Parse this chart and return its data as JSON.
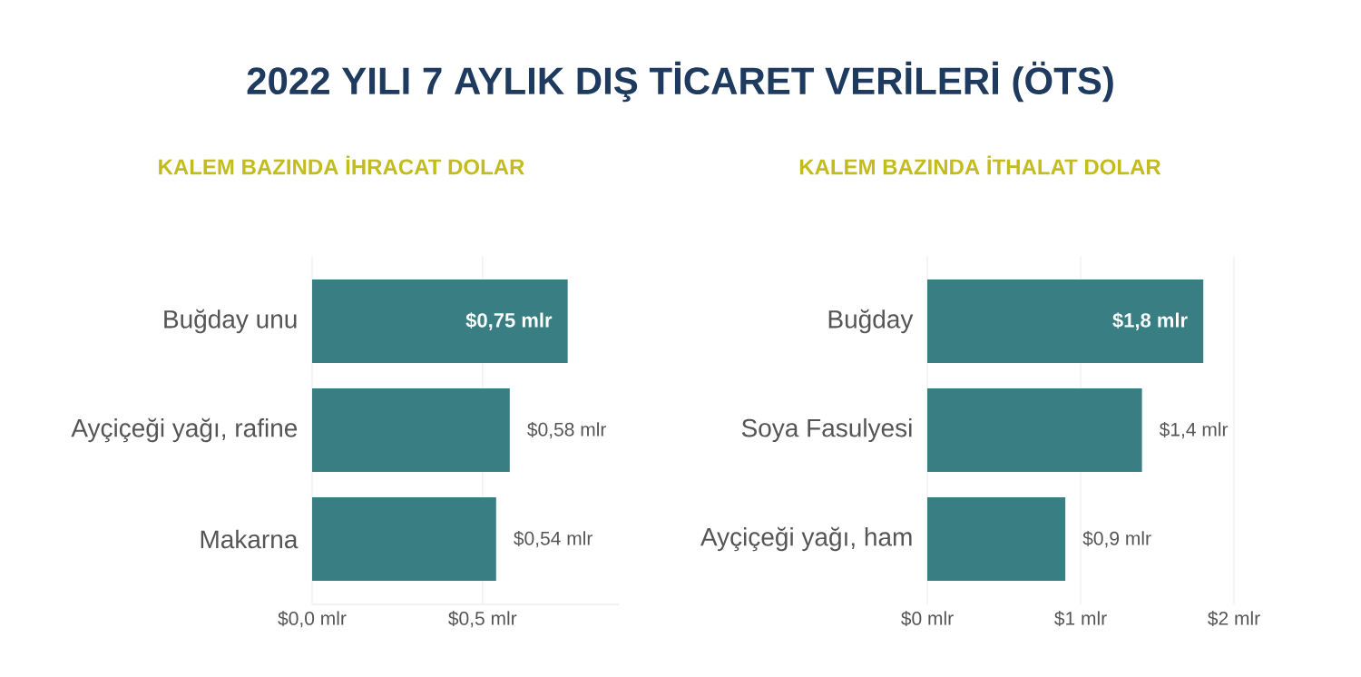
{
  "chart_data": [
    {
      "type": "other",
      "title": "2022 YILI 7 AYLIK DIŞ TİCARET VERİLERİ (ÖTS)"
    },
    {
      "type": "bar",
      "orientation": "horizontal",
      "title": "KALEM BAZINDA İHRACAT DOLAR",
      "categories": [
        "Buğday unu",
        "Ayçiçeği yağı, rafine",
        "Makarna"
      ],
      "values": [
        0.75,
        0.58,
        0.54
      ],
      "value_labels": [
        "$0,75 mlr",
        "$0,58 mlr",
        "$0,54 mlr"
      ],
      "color": "#387e82",
      "xlim": [
        0,
        0.9
      ],
      "xticks": [
        {
          "value": 0,
          "label": "$0,0 mlr"
        },
        {
          "value": 0.5,
          "label": "$0,5 mlr"
        }
      ],
      "grid": "x"
    },
    {
      "type": "bar",
      "orientation": "horizontal",
      "title": "KALEM BAZINDA İTHALAT DOLAR",
      "categories": [
        "Buğday",
        "Soya Fasulyesi",
        "Ayçiçeği yağı, ham"
      ],
      "values": [
        1.8,
        1.4,
        0.9
      ],
      "value_labels": [
        "$1,8 mlr",
        "$1,4 mlr",
        "$0,9 mlr"
      ],
      "color": "#387e82",
      "xlim": [
        0,
        2
      ],
      "xticks": [
        {
          "value": 0,
          "label": "$0 mlr"
        },
        {
          "value": 1,
          "label": "$1 mlr"
        },
        {
          "value": 2,
          "label": "$2 mlr"
        }
      ],
      "grid": "x"
    }
  ]
}
